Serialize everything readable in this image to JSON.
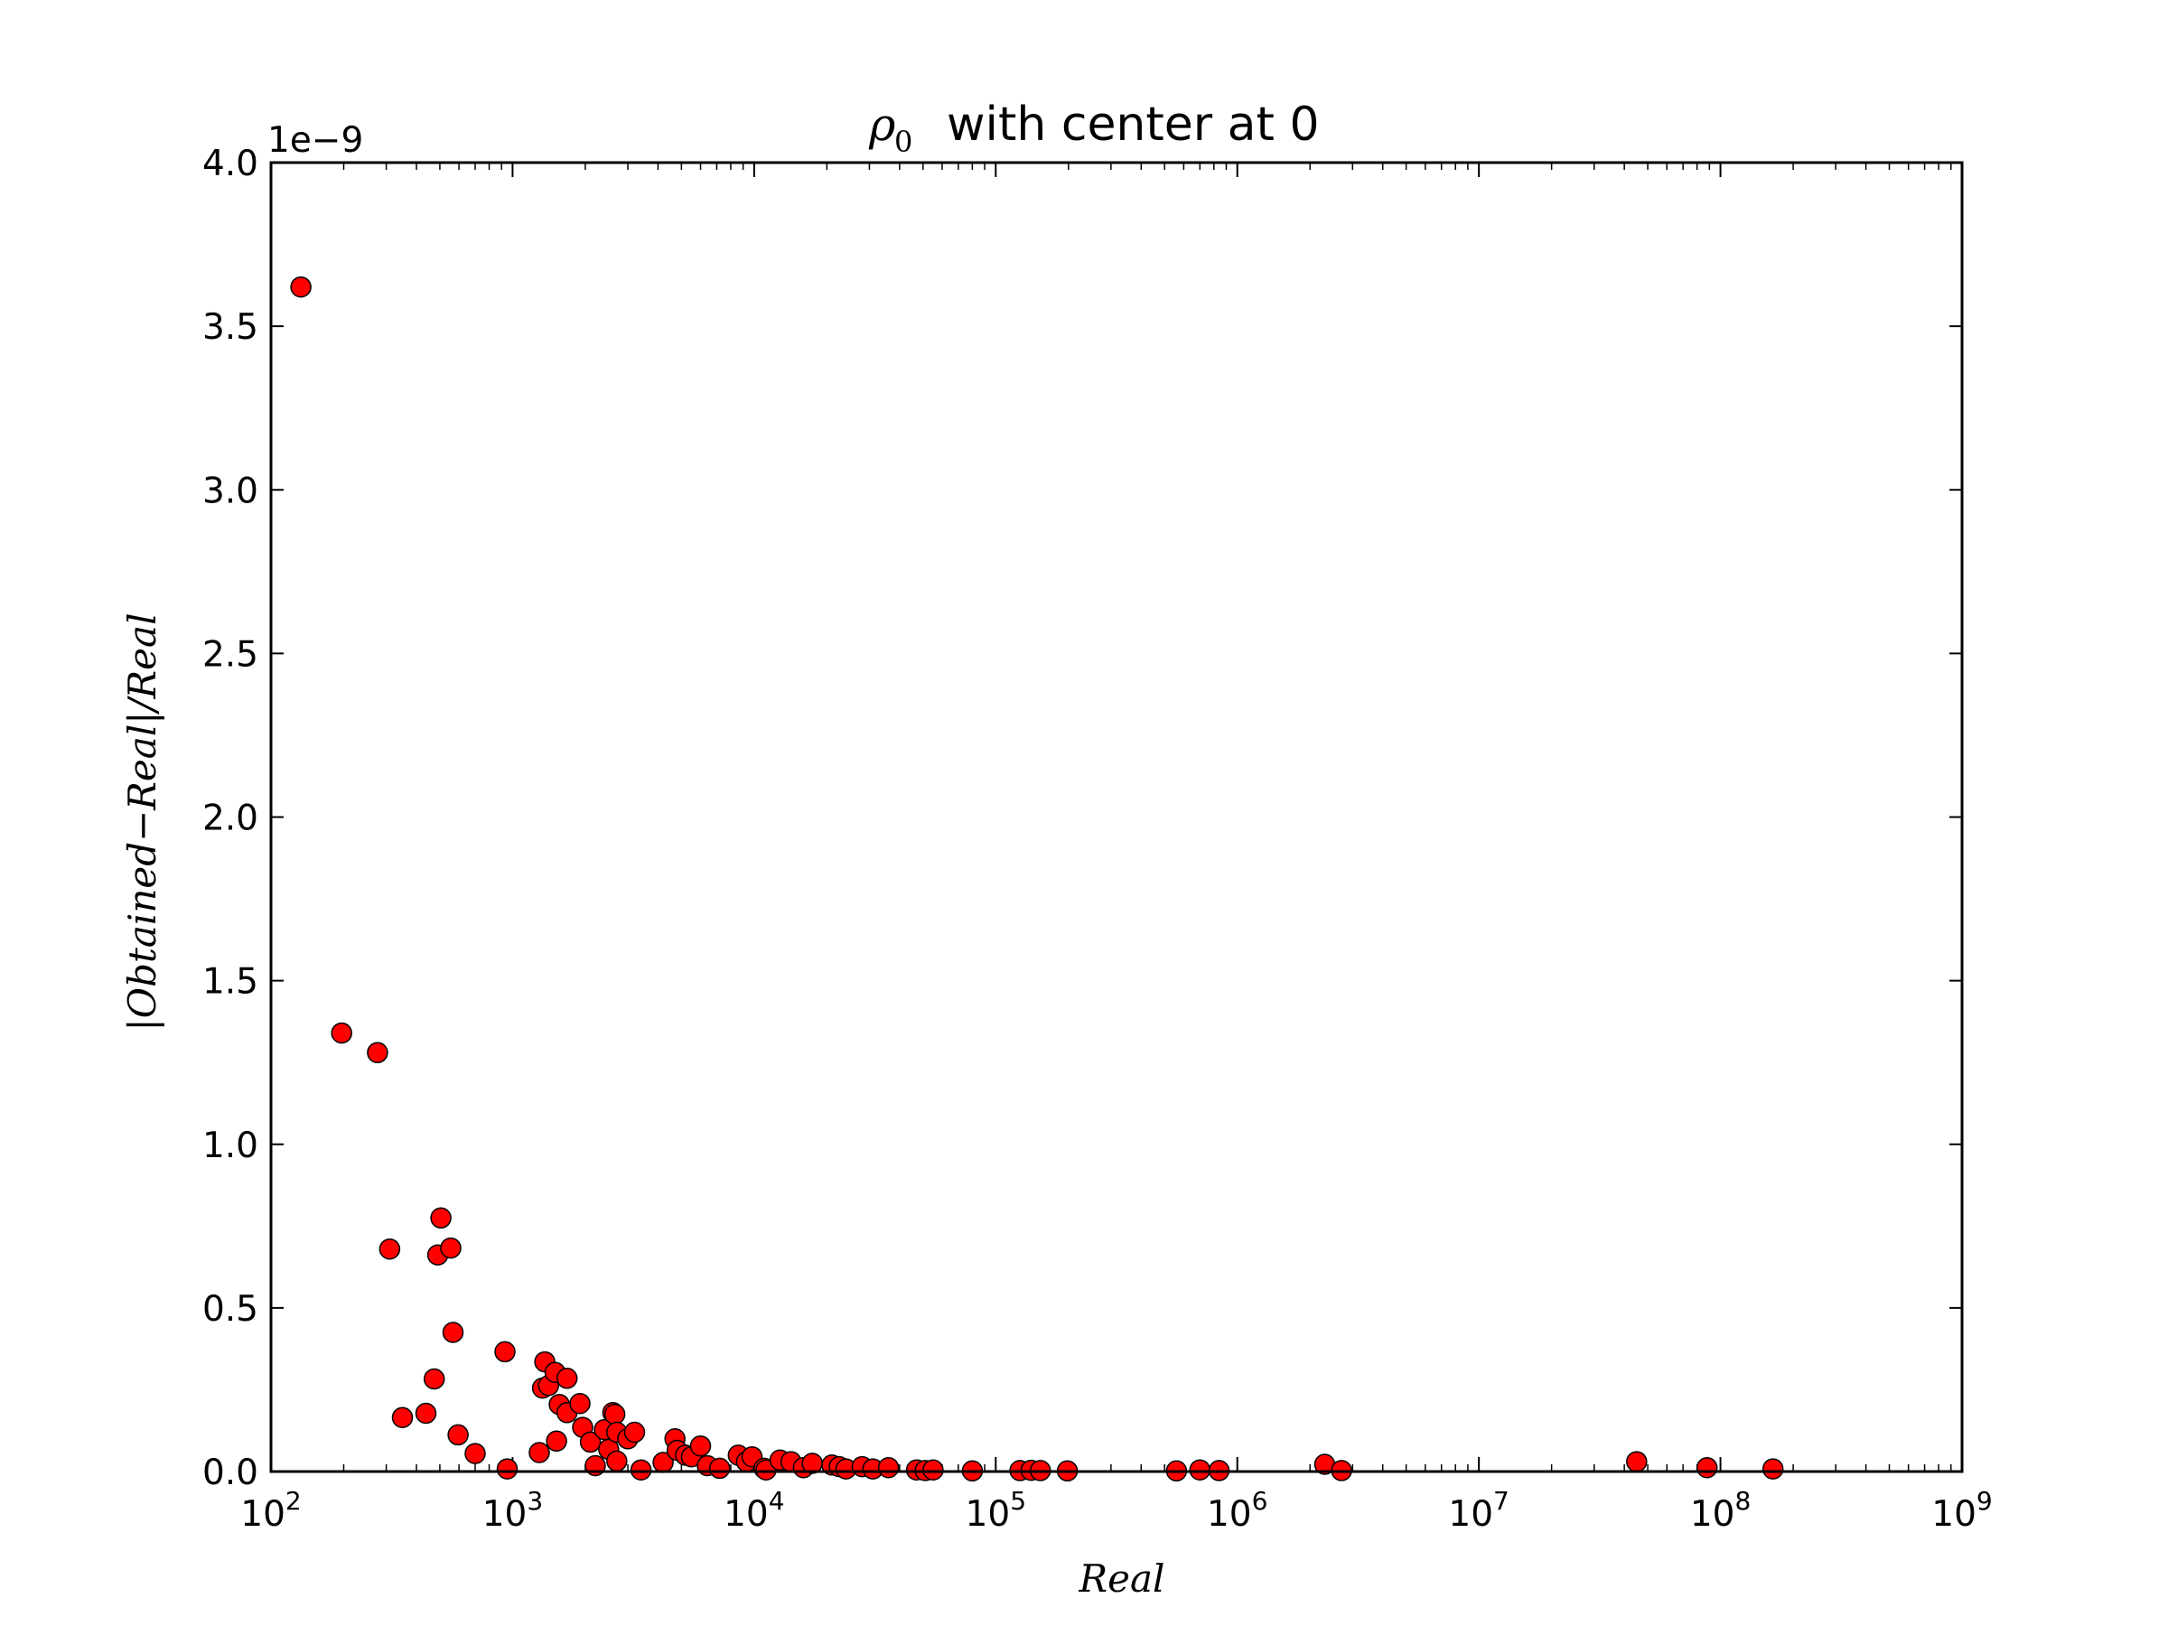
{
  "chart_data": {
    "type": "scatter",
    "title_symbol": "ρ",
    "title_subscript": "0",
    "title_text": "with center at 0",
    "xlabel": "Real",
    "ylabel": "|Obtained−Real|/Real",
    "y_offset_label": "1e−9",
    "x_scale": "log",
    "xlim": [
      100,
      1000000000
    ],
    "ylim": [
      0,
      4.0
    ],
    "y_multiplier": 1e-09,
    "x_ticks": [
      {
        "base": "10",
        "exp": "2",
        "value": 100
      },
      {
        "base": "10",
        "exp": "3",
        "value": 1000
      },
      {
        "base": "10",
        "exp": "4",
        "value": 10000
      },
      {
        "base": "10",
        "exp": "5",
        "value": 100000
      },
      {
        "base": "10",
        "exp": "6",
        "value": 1000000
      },
      {
        "base": "10",
        "exp": "7",
        "value": 10000000
      },
      {
        "base": "10",
        "exp": "8",
        "value": 100000000
      },
      {
        "base": "10",
        "exp": "9",
        "value": 1000000000
      }
    ],
    "y_ticks": [
      "0.0",
      "0.5",
      "1.0",
      "1.5",
      "2.0",
      "2.5",
      "3.0",
      "3.5",
      "4.0"
    ],
    "grid": false,
    "marker_color": "#ff0000",
    "marker_edge": "#000000",
    "points": [
      {
        "x": 133,
        "y": 3.62
      },
      {
        "x": 196,
        "y": 1.34
      },
      {
        "x": 276,
        "y": 1.28
      },
      {
        "x": 310,
        "y": 0.68
      },
      {
        "x": 350,
        "y": 0.165
      },
      {
        "x": 438,
        "y": 0.178
      },
      {
        "x": 474,
        "y": 0.283
      },
      {
        "x": 490,
        "y": 0.662
      },
      {
        "x": 505,
        "y": 0.775
      },
      {
        "x": 555,
        "y": 0.683
      },
      {
        "x": 567,
        "y": 0.425
      },
      {
        "x": 595,
        "y": 0.112
      },
      {
        "x": 700,
        "y": 0.055
      },
      {
        "x": 930,
        "y": 0.366
      },
      {
        "x": 950,
        "y": 0.008
      },
      {
        "x": 1290,
        "y": 0.058
      },
      {
        "x": 1330,
        "y": 0.255
      },
      {
        "x": 1360,
        "y": 0.335
      },
      {
        "x": 1410,
        "y": 0.263
      },
      {
        "x": 1500,
        "y": 0.303
      },
      {
        "x": 1520,
        "y": 0.093
      },
      {
        "x": 1560,
        "y": 0.205
      },
      {
        "x": 1680,
        "y": 0.285
      },
      {
        "x": 1680,
        "y": 0.18
      },
      {
        "x": 1900,
        "y": 0.208
      },
      {
        "x": 1950,
        "y": 0.135
      },
      {
        "x": 2100,
        "y": 0.09
      },
      {
        "x": 2200,
        "y": 0.018
      },
      {
        "x": 2400,
        "y": 0.128
      },
      {
        "x": 2500,
        "y": 0.068
      },
      {
        "x": 2600,
        "y": 0.18
      },
      {
        "x": 2650,
        "y": 0.175
      },
      {
        "x": 2700,
        "y": 0.12
      },
      {
        "x": 2700,
        "y": 0.032
      },
      {
        "x": 3000,
        "y": 0.1
      },
      {
        "x": 3200,
        "y": 0.12
      },
      {
        "x": 3400,
        "y": 0.005
      },
      {
        "x": 4200,
        "y": 0.028
      },
      {
        "x": 4700,
        "y": 0.1
      },
      {
        "x": 4800,
        "y": 0.065
      },
      {
        "x": 5200,
        "y": 0.05
      },
      {
        "x": 5500,
        "y": 0.045
      },
      {
        "x": 6000,
        "y": 0.078
      },
      {
        "x": 6400,
        "y": 0.018
      },
      {
        "x": 7200,
        "y": 0.01
      },
      {
        "x": 8600,
        "y": 0.05
      },
      {
        "x": 9300,
        "y": 0.03
      },
      {
        "x": 9800,
        "y": 0.045
      },
      {
        "x": 11000,
        "y": 0.01
      },
      {
        "x": 11200,
        "y": 0.005
      },
      {
        "x": 12800,
        "y": 0.035
      },
      {
        "x": 14200,
        "y": 0.03
      },
      {
        "x": 16000,
        "y": 0.012
      },
      {
        "x": 17400,
        "y": 0.025
      },
      {
        "x": 21000,
        "y": 0.02
      },
      {
        "x": 22500,
        "y": 0.015
      },
      {
        "x": 24000,
        "y": 0.008
      },
      {
        "x": 28000,
        "y": 0.015
      },
      {
        "x": 31000,
        "y": 0.008
      },
      {
        "x": 36000,
        "y": 0.012
      },
      {
        "x": 47000,
        "y": 0.005
      },
      {
        "x": 51000,
        "y": 0.003
      },
      {
        "x": 55000,
        "y": 0.005
      },
      {
        "x": 80000,
        "y": 0.002
      },
      {
        "x": 126000,
        "y": 0.003
      },
      {
        "x": 140000,
        "y": 0.004
      },
      {
        "x": 153000,
        "y": 0.003
      },
      {
        "x": 198000,
        "y": 0.002
      },
      {
        "x": 560000,
        "y": 0.002
      },
      {
        "x": 700000,
        "y": 0.005
      },
      {
        "x": 840000,
        "y": 0.003
      },
      {
        "x": 2300000,
        "y": 0.022
      },
      {
        "x": 2700000,
        "y": 0.003
      },
      {
        "x": 45000000,
        "y": 0.03
      },
      {
        "x": 88000000,
        "y": 0.012
      },
      {
        "x": 165000000,
        "y": 0.008
      }
    ]
  }
}
